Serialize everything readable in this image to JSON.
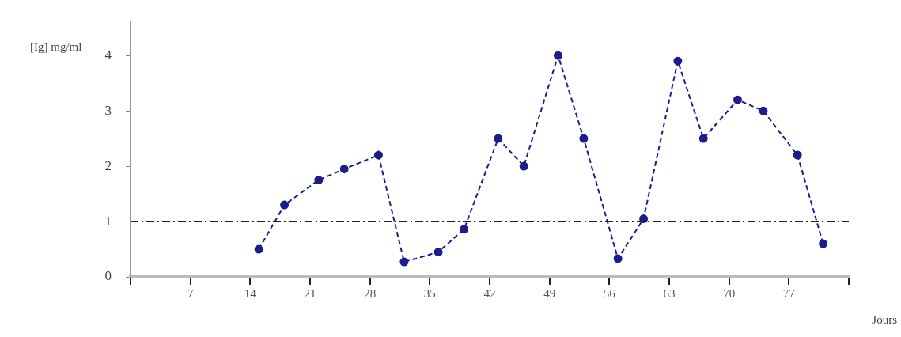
{
  "chart_data": {
    "type": "line",
    "xlabel": "Jours",
    "ylabel": "[Ig] mg/ml",
    "x": [
      15,
      18,
      22,
      25,
      29,
      32,
      36,
      39,
      43,
      46,
      50,
      53,
      57,
      60,
      64,
      67,
      71,
      74,
      78,
      81
    ],
    "series": [
      {
        "color": "#1c1c8c",
        "values": [
          0.5,
          1.3,
          1.75,
          1.95,
          2.2,
          0.27,
          0.45,
          0.86,
          2.5,
          2.0,
          4.0,
          2.5,
          0.33,
          1.05,
          3.9,
          2.5,
          3.2,
          3.0,
          2.2,
          0.6
        ]
      }
    ],
    "xlim": [
      0,
      84
    ],
    "xticks": [
      {
        "value": 0,
        "label": null
      },
      7,
      14,
      21,
      28,
      35,
      42,
      49,
      56,
      63,
      70,
      77,
      {
        "value": 84,
        "label": null
      }
    ],
    "ylim": [
      0,
      4.6
    ],
    "yticks": [
      0,
      1,
      2,
      3,
      4
    ],
    "ref_lines": [
      {
        "axis": "y",
        "value": 1,
        "color": "#222222",
        "line_style": "dashdot"
      }
    ],
    "marker": "circle",
    "line_style": "dashed",
    "grid": false,
    "legend": false
  }
}
